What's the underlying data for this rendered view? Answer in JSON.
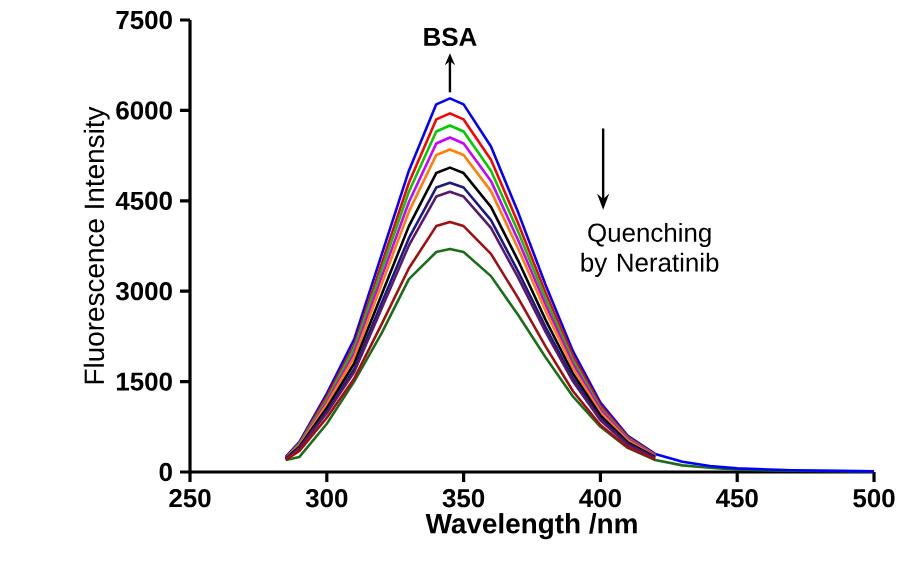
{
  "chart_data": {
    "type": "line",
    "xlabel": "Wavelength /nm",
    "ylabel": "Fluorescence Intensity",
    "annotations": [
      "BSA",
      "Quenching by Neratinib"
    ],
    "x": [
      285,
      290,
      300,
      310,
      320,
      330,
      340,
      345,
      350,
      360,
      370,
      380,
      390,
      400,
      410,
      420,
      430,
      440,
      450,
      470,
      500
    ],
    "series": [
      {
        "color": "#0000ff",
        "values": [
          250,
          500,
          1300,
          2200,
          3600,
          5000,
          6100,
          6200,
          6100,
          5400,
          4300,
          3100,
          2000,
          1150,
          600,
          300,
          170,
          100,
          60,
          30,
          10
        ]
      },
      {
        "color": "#ff0000",
        "values": [
          240,
          480,
          1250,
          2100,
          3450,
          4800,
          5850,
          5950,
          5850,
          5180,
          4120,
          2970,
          1920,
          1100,
          580,
          290,
          null,
          null,
          null,
          null,
          null
        ]
      },
      {
        "color": "#00cc00",
        "values": [
          230,
          470,
          1200,
          2050,
          3350,
          4650,
          5650,
          5750,
          5650,
          5000,
          3980,
          2870,
          1850,
          1060,
          560,
          280,
          null,
          null,
          null,
          null,
          null
        ]
      },
      {
        "color": "#cc00ff",
        "values": [
          230,
          450,
          1160,
          1970,
          3230,
          4480,
          5450,
          5550,
          5450,
          4830,
          3840,
          2770,
          1790,
          1030,
          540,
          270,
          null,
          null,
          null,
          null,
          null
        ]
      },
      {
        "color": "#ff8000",
        "values": [
          220,
          440,
          1120,
          1900,
          3110,
          4320,
          5260,
          5350,
          5260,
          4660,
          3700,
          2670,
          1720,
          990,
          520,
          260,
          null,
          null,
          null,
          null,
          null
        ]
      },
      {
        "color": "#000000",
        "values": [
          220,
          420,
          1060,
          1800,
          2940,
          4080,
          4960,
          5050,
          4960,
          4400,
          3500,
          2520,
          1630,
          940,
          490,
          250,
          null,
          null,
          null,
          null,
          null
        ]
      },
      {
        "color": "#1a1a80",
        "values": [
          210,
          400,
          1010,
          1710,
          2800,
          3880,
          4720,
          4800,
          4720,
          4180,
          3320,
          2400,
          1550,
          890,
          470,
          240,
          null,
          null,
          null,
          null,
          null
        ]
      },
      {
        "color": "#5a1a6a",
        "values": [
          210,
          390,
          980,
          1660,
          2710,
          3760,
          4570,
          4650,
          4570,
          4050,
          3220,
          2320,
          1500,
          860,
          450,
          230,
          null,
          null,
          null,
          null,
          null
        ]
      },
      {
        "color": "#a01010",
        "values": [
          200,
          350,
          900,
          1550,
          2450,
          3380,
          4080,
          4150,
          4080,
          3620,
          2880,
          2080,
          1340,
          780,
          410,
          210,
          null,
          null,
          null,
          null,
          null
        ]
      },
      {
        "color": "#1a6e1a",
        "values": [
          200,
          250,
          800,
          1500,
          2300,
          3200,
          3650,
          3700,
          3650,
          3250,
          2600,
          1900,
          1250,
          750,
          400,
          200,
          110,
          70,
          40,
          20,
          10
        ]
      }
    ],
    "xlim": [
      250,
      500
    ],
    "ylim": [
      0,
      7500
    ],
    "xticks": [
      250,
      300,
      350,
      400,
      450,
      500
    ],
    "yticks": [
      0,
      1500,
      3000,
      4500,
      6000,
      7500
    ],
    "grid": false,
    "marker": "none",
    "line_style": "solid"
  }
}
